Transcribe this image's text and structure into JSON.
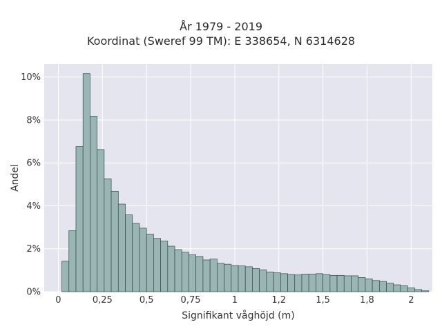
{
  "chart_data": {
    "type": "bar",
    "title": "År 1979 - 2019",
    "subtitle": "Koordinat (Sweref 99 TM): E 338654, N 6314628",
    "xlabel": "Signifikant våghöjd (m)",
    "ylabel": "Andel",
    "xlim": [
      -0.08,
      2.12
    ],
    "ylim": [
      0,
      0.106
    ],
    "x_ticks": [
      0,
      0.25,
      0.5,
      0.75,
      1,
      1.25,
      1.5,
      1.75,
      2
    ],
    "x_tick_labels": [
      "0",
      "0,25",
      "0,5",
      "0,75",
      "1",
      "1,2",
      "1,5",
      "1,8",
      "2"
    ],
    "y_ticks": [
      0,
      0.02,
      0.04,
      0.06,
      0.08,
      0.1
    ],
    "y_tick_labels": [
      "0%",
      "2%",
      "4%",
      "6%",
      "8%",
      "10%"
    ],
    "grid": true,
    "bin_start": 0.02,
    "bin_width": 0.04,
    "values": [
      0.0142,
      0.0284,
      0.0676,
      0.1016,
      0.0818,
      0.0662,
      0.0526,
      0.0468,
      0.0408,
      0.0358,
      0.0318,
      0.0296,
      0.0268,
      0.0248,
      0.0236,
      0.0212,
      0.0196,
      0.0184,
      0.0172,
      0.0164,
      0.0148,
      0.0152,
      0.0132,
      0.0128,
      0.0122,
      0.012,
      0.0116,
      0.0108,
      0.0102,
      0.0092,
      0.0088,
      0.0084,
      0.008,
      0.0078,
      0.0082,
      0.0082,
      0.0084,
      0.008,
      0.0076,
      0.0076,
      0.0074,
      0.0074,
      0.0066,
      0.006,
      0.0052,
      0.0048,
      0.004,
      0.0032,
      0.0028,
      0.0018,
      0.001,
      0.0004
    ],
    "colors": {
      "bar_fill": "#9ab5b3",
      "bar_edge": "#2f4a47",
      "plot_bg": "#e5e5ef",
      "grid": "#ffffff"
    }
  }
}
